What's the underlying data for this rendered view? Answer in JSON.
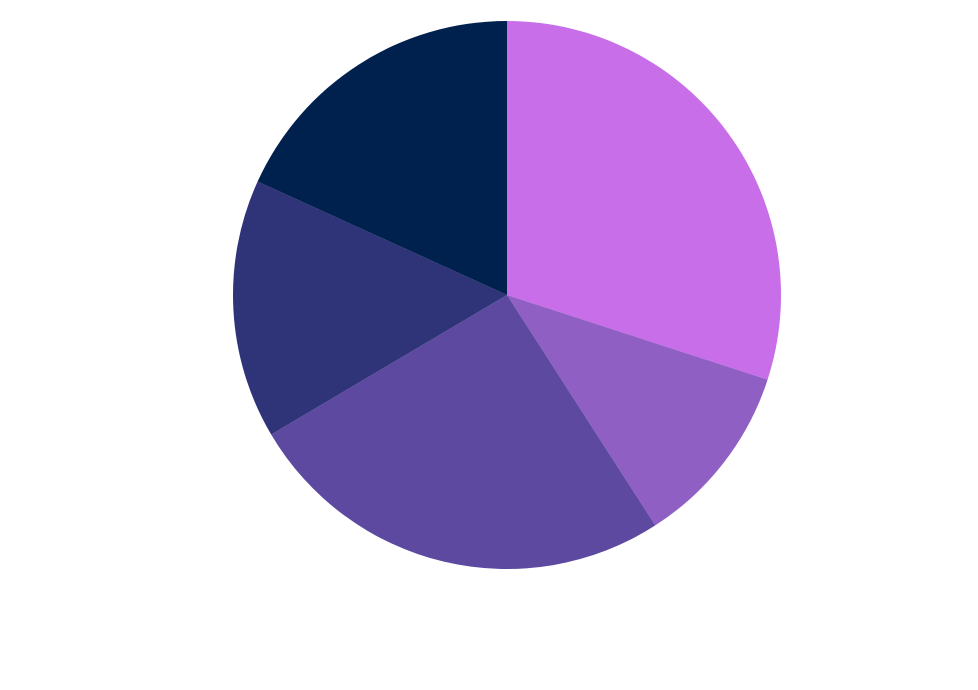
{
  "chart_data": {
    "type": "pie",
    "start_angle_deg": 0,
    "direction": "clockwise",
    "slices": [
      {
        "value": 30.0,
        "color": "#c86ee8"
      },
      {
        "value": 10.9,
        "color": "#8f5fc4"
      },
      {
        "value": 25.6,
        "color": "#5d4aa0"
      },
      {
        "value": 15.3,
        "color": "#2f3377"
      },
      {
        "value": 18.2,
        "color": "#00204d"
      }
    ]
  }
}
